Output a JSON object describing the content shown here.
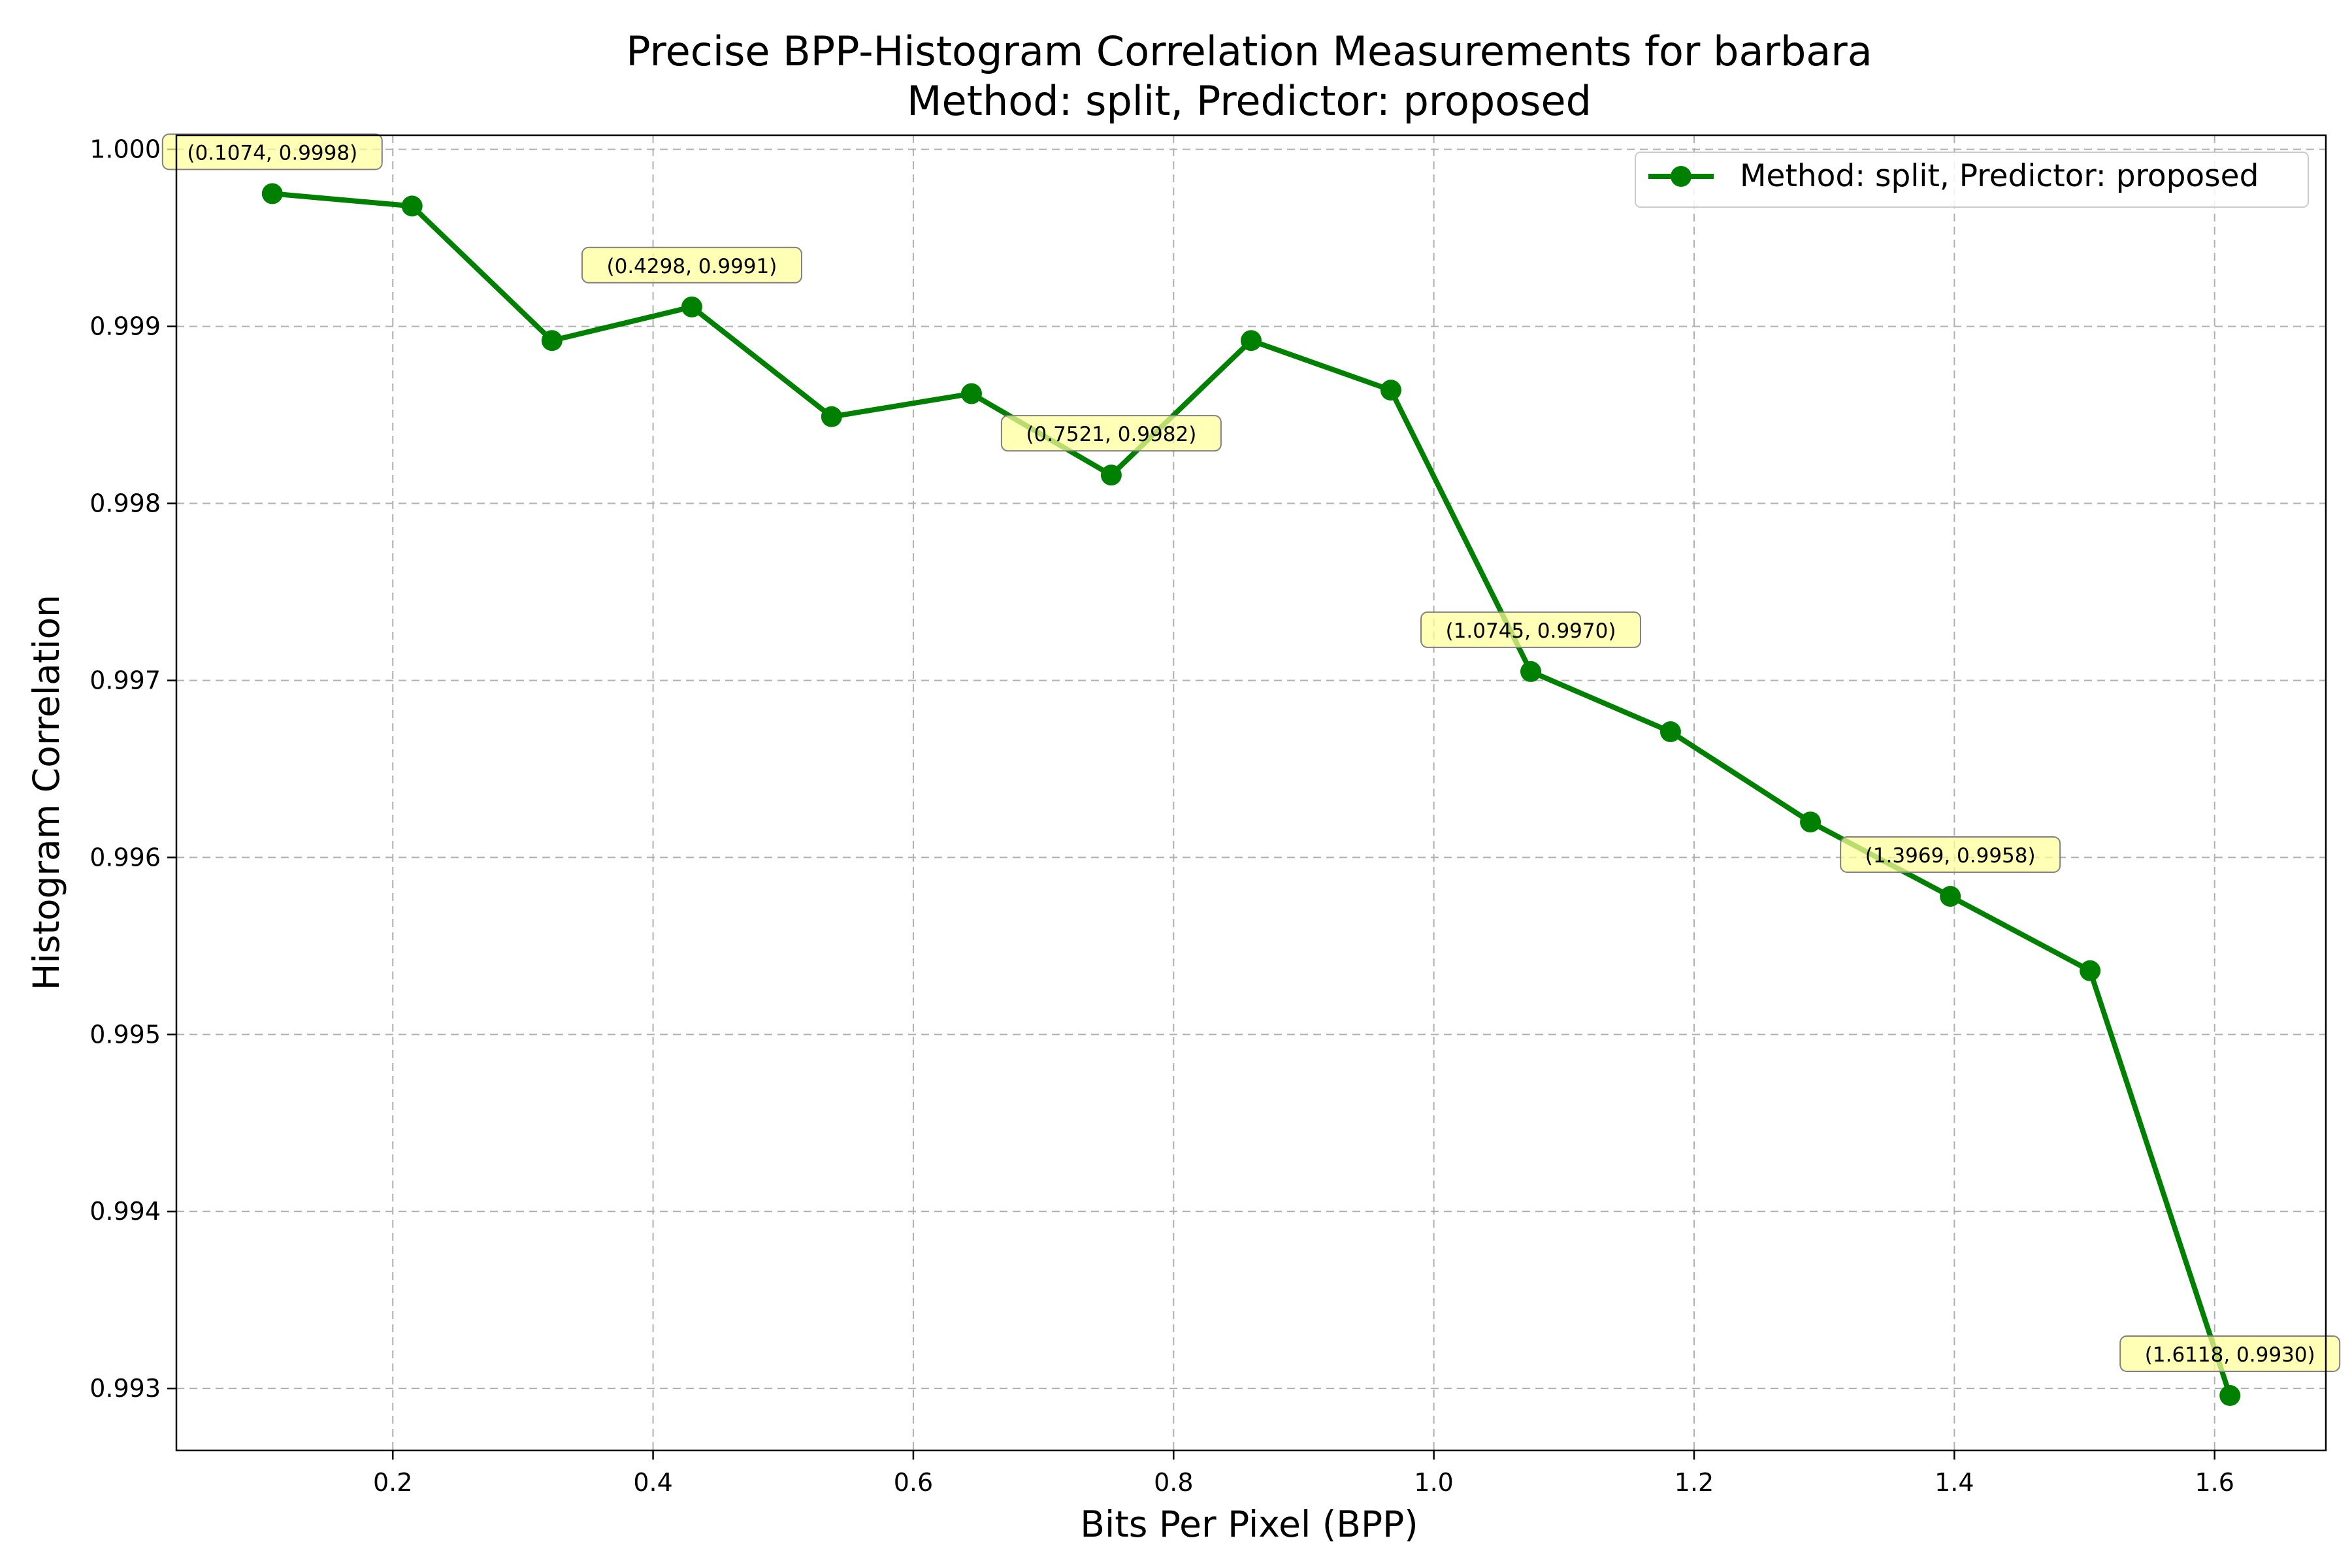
{
  "chart_data": {
    "type": "line",
    "title": "Precise BPP-Histogram Correlation Measurements for barbara",
    "subtitle": "Method: split, Predictor: proposed",
    "xlabel": "Bits Per Pixel (BPP)",
    "ylabel": "Histogram Correlation",
    "xlim": [
      0.0337,
      1.6855
    ],
    "ylim": [
      0.99265,
      1.00008
    ],
    "xticks": [
      "0.2",
      "0.4",
      "0.6",
      "0.8",
      "1.0",
      "1.2",
      "1.4",
      "1.6"
    ],
    "yticks": [
      "0.993",
      "0.994",
      "0.995",
      "0.996",
      "0.997",
      "0.998",
      "0.999",
      "1.000"
    ],
    "grid": true,
    "legend_position": "top-right",
    "series": [
      {
        "name": "Method: split, Predictor: proposed",
        "color": "#008000",
        "marker": "circle",
        "x": [
          0.1074,
          0.2148,
          0.3223,
          0.4298,
          0.5372,
          0.6447,
          0.7521,
          0.8596,
          0.967,
          1.0745,
          1.1819,
          1.2894,
          1.3969,
          1.5043,
          1.6118
        ],
        "y": [
          0.99975,
          0.99968,
          0.99892,
          0.99911,
          0.99849,
          0.99862,
          0.99816,
          0.99892,
          0.99864,
          0.99705,
          0.99671,
          0.9962,
          0.99578,
          0.99536,
          0.99296
        ]
      }
    ],
    "annotations": [
      {
        "x": 0.1074,
        "y": 0.99975,
        "text": "(0.1074, 0.9998)"
      },
      {
        "x": 0.4298,
        "y": 0.99911,
        "text": "(0.4298, 0.9991)"
      },
      {
        "x": 0.7521,
        "y": 0.99816,
        "text": "(0.7521, 0.9982)"
      },
      {
        "x": 1.0745,
        "y": 0.99705,
        "text": "(1.0745, 0.9970)"
      },
      {
        "x": 1.3969,
        "y": 0.99578,
        "text": "(1.3969, 0.9958)"
      },
      {
        "x": 1.6118,
        "y": 0.99296,
        "text": "(1.6118, 0.9930)"
      }
    ]
  }
}
